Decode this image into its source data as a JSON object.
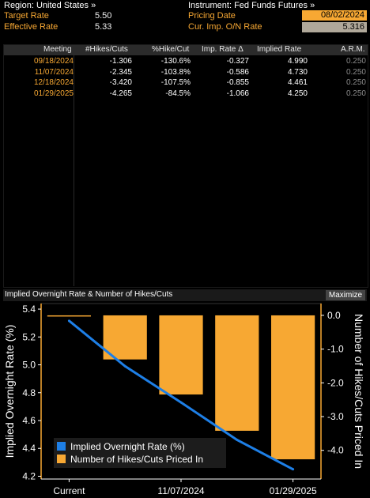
{
  "header": {
    "region_label": "Region: United States »",
    "instrument_label": "Instrument: Fed Funds Futures »",
    "target_rate_label": "Target Rate",
    "target_rate_value": "5.50",
    "effective_rate_label": "Effective Rate",
    "effective_rate_value": "5.33",
    "pricing_date_label": "Pricing Date",
    "pricing_date_value": "08/02/2024",
    "cur_imp_label": "Cur. Imp. O/N Rate",
    "cur_imp_value": "5.316"
  },
  "table": {
    "columns": [
      "Meeting",
      "#Hikes/Cuts",
      "%Hike/Cut",
      "Imp. Rate Δ",
      "Implied Rate",
      "A.R.M."
    ],
    "rows": [
      {
        "meeting": "09/18/2024",
        "hikes": "-1.306",
        "pct": "-130.6%",
        "imp_delta": "-0.327",
        "implied": "4.990",
        "arm": "0.250"
      },
      {
        "meeting": "11/07/2024",
        "hikes": "-2.345",
        "pct": "-103.8%",
        "imp_delta": "-0.586",
        "implied": "4.730",
        "arm": "0.250"
      },
      {
        "meeting": "12/18/2024",
        "hikes": "-3.420",
        "pct": "-107.5%",
        "imp_delta": "-0.855",
        "implied": "4.461",
        "arm": "0.250"
      },
      {
        "meeting": "01/29/2025",
        "hikes": "-4.265",
        "pct": "-84.5%",
        "imp_delta": "-1.066",
        "implied": "4.250",
        "arm": "0.250"
      }
    ]
  },
  "chart_panel": {
    "title": "Implied Overnight Rate & Number of Hikes/Cuts",
    "maximize_label": "Maximize"
  },
  "colors": {
    "accent_orange": "#f7a833",
    "line_blue": "#1e7fe6"
  },
  "chart_data": {
    "type": "bar",
    "categories": [
      "Current",
      "09/18/2024",
      "11/07/2024",
      "12/18/2024",
      "01/29/2025"
    ],
    "x_tick_labels": [
      "Current",
      "11/07/2024",
      "01/29/2025"
    ],
    "series": [
      {
        "name": "Implied Overnight Rate (%)",
        "type": "line",
        "axis": "left",
        "values": [
          5.316,
          4.99,
          4.73,
          4.461,
          4.25
        ]
      },
      {
        "name": "Number of Hikes/Cuts Priced In",
        "type": "bar",
        "axis": "right",
        "values": [
          0.0,
          -1.306,
          -2.345,
          -3.42,
          -4.265
        ]
      }
    ],
    "ylabel": "Implied Overnight Rate (%)",
    "y2label": "Number of Hikes/Cuts Priced In",
    "ylim": [
      4.18,
      5.44
    ],
    "y2lim": [
      -4.85,
      0.35
    ],
    "yticks": [
      "5.4",
      "5.2",
      "5.0",
      "4.8",
      "4.6",
      "4.4",
      "4.2"
    ],
    "y2ticks": [
      "0.0",
      "-1.0",
      "-2.0",
      "-3.0",
      "-4.0"
    ],
    "legend": "bottom-left",
    "grid": false
  }
}
